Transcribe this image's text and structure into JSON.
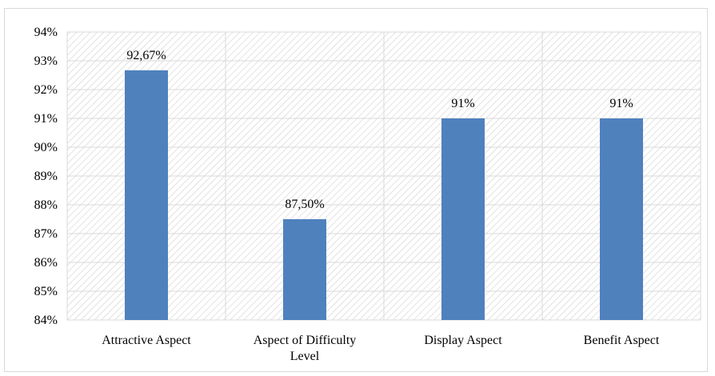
{
  "chart_data": {
    "type": "bar",
    "categories": [
      "Attractive Aspect",
      "Aspect of Difficulty Level",
      "Display Aspect",
      "Benefit Aspect"
    ],
    "category_lines": [
      [
        "Attractive Aspect"
      ],
      [
        "Aspect of Difficulty",
        "Level"
      ],
      [
        "Display Aspect"
      ],
      [
        "Benefit Aspect"
      ]
    ],
    "values": [
      92.67,
      87.5,
      91,
      91
    ],
    "data_labels": [
      "92,67%",
      "87,50%",
      "91%",
      "91%"
    ],
    "y_ticks": [
      "84%",
      "85%",
      "86%",
      "87%",
      "88%",
      "89%",
      "90%",
      "91%",
      "92%",
      "93%",
      "94%"
    ],
    "ylim": [
      84,
      94
    ],
    "title": "",
    "xlabel": "",
    "ylabel": "",
    "grid": true,
    "legend": "none",
    "colors": {
      "bar": "#4f81bd",
      "grid": "#d9d9d9",
      "hatch": "#d0d0d0",
      "frame": "#d9d9d9"
    }
  }
}
